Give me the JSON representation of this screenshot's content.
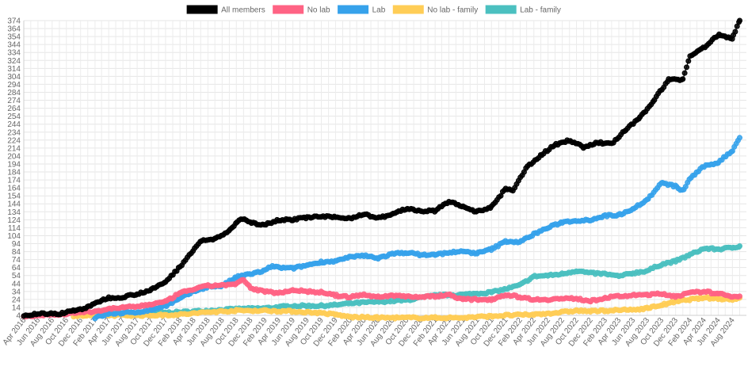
{
  "chart_data": {
    "type": "line",
    "legend_position": "top",
    "grid": true,
    "ylim": [
      4,
      374
    ],
    "y_ticks": [
      4,
      14,
      24,
      34,
      44,
      54,
      64,
      74,
      84,
      94,
      104,
      114,
      124,
      134,
      144,
      154,
      164,
      174,
      184,
      194,
      204,
      214,
      224,
      234,
      244,
      254,
      264,
      274,
      284,
      294,
      304,
      314,
      324,
      334,
      344,
      354,
      364,
      374
    ],
    "x_ticks": [
      "Apr 2016",
      "Jun 2016",
      "Aug 2016",
      "Oct 2016",
      "Dec 2016",
      "Feb 2017",
      "Apr 2017",
      "Jun 2017",
      "Aug 2017",
      "Oct 2017",
      "Dec 2017",
      "Feb 2018",
      "Apr 2018",
      "Jun 2018",
      "Aug 2018",
      "Oct 2018",
      "Dec 2018",
      "Feb 2019",
      "Apr 2019",
      "Jun 2019",
      "Aug 2019",
      "Oct 2019",
      "Dec 2019",
      "Feb 2020",
      "Apr 2020",
      "Jun 2020",
      "Aug 2020",
      "Oct 2020",
      "Dec 2020",
      "Feb 2021",
      "Apr 2021",
      "Jun 2021",
      "Aug 2021",
      "Oct 2021",
      "Dec 2021",
      "Feb 2022",
      "Apr 2022",
      "Jun 2022",
      "Aug 2022",
      "Oct 2022",
      "Dec 2022",
      "Feb 2023",
      "Apr 2023",
      "Jun 2023",
      "Aug 2023",
      "Oct 2023",
      "Dec 2023",
      "Feb 2024",
      "Apr 2024",
      "Jun 2024",
      "Aug 2024"
    ],
    "x_range": [
      "2016-04-01",
      "2024-09-30"
    ],
    "series": [
      {
        "name": "All members",
        "color": "#000000",
        "points": [
          [
            "2016-04-01",
            3
          ],
          [
            "2016-05-01",
            5
          ],
          [
            "2016-06-01",
            6
          ],
          [
            "2016-09-01",
            6
          ],
          [
            "2016-11-01",
            10
          ],
          [
            "2017-01-01",
            14
          ],
          [
            "2017-03-01",
            23
          ],
          [
            "2017-04-01",
            26
          ],
          [
            "2017-06-01",
            27
          ],
          [
            "2017-08-01",
            31
          ],
          [
            "2017-10-01",
            36
          ],
          [
            "2017-12-01",
            46
          ],
          [
            "2018-02-01",
            65
          ],
          [
            "2018-04-01",
            87
          ],
          [
            "2018-05-01",
            97
          ],
          [
            "2018-07-01",
            100
          ],
          [
            "2018-09-01",
            110
          ],
          [
            "2018-10-01",
            120
          ],
          [
            "2018-11-01",
            126
          ],
          [
            "2018-12-01",
            120
          ],
          [
            "2019-02-01",
            118
          ],
          [
            "2019-04-01",
            124
          ],
          [
            "2019-06-01",
            124
          ],
          [
            "2019-08-01",
            127
          ],
          [
            "2019-10-01",
            128
          ],
          [
            "2019-12-01",
            127
          ],
          [
            "2020-02-01",
            126
          ],
          [
            "2020-04-01",
            131
          ],
          [
            "2020-06-01",
            126
          ],
          [
            "2020-08-01",
            131
          ],
          [
            "2020-10-01",
            138
          ],
          [
            "2020-12-01",
            135
          ],
          [
            "2021-02-01",
            135
          ],
          [
            "2021-04-01",
            147
          ],
          [
            "2021-06-01",
            140
          ],
          [
            "2021-08-01",
            134
          ],
          [
            "2021-10-01",
            140
          ],
          [
            "2021-12-01",
            163
          ],
          [
            "2022-01-01",
            160
          ],
          [
            "2022-03-01",
            190
          ],
          [
            "2022-05-01",
            205
          ],
          [
            "2022-07-01",
            218
          ],
          [
            "2022-09-01",
            224
          ],
          [
            "2022-11-01",
            215
          ],
          [
            "2023-01-01",
            221
          ],
          [
            "2023-03-01",
            219
          ],
          [
            "2023-05-01",
            237
          ],
          [
            "2023-07-01",
            252
          ],
          [
            "2023-09-01",
            275
          ],
          [
            "2023-11-01",
            300
          ],
          [
            "2024-01-01",
            300
          ],
          [
            "2024-02-01",
            330
          ],
          [
            "2024-04-01",
            340
          ],
          [
            "2024-06-01",
            356
          ],
          [
            "2024-08-01",
            352
          ],
          [
            "2024-09-01",
            374
          ]
        ]
      },
      {
        "name": "No lab",
        "color": "#ff6384",
        "points": [
          [
            "2016-04-01",
            3
          ],
          [
            "2016-06-01",
            4
          ],
          [
            "2016-09-01",
            5
          ],
          [
            "2016-11-01",
            7
          ],
          [
            "2017-02-01",
            9
          ],
          [
            "2017-04-01",
            12
          ],
          [
            "2017-06-01",
            14
          ],
          [
            "2017-08-01",
            15
          ],
          [
            "2017-10-01",
            18
          ],
          [
            "2017-12-01",
            21
          ],
          [
            "2018-02-01",
            32
          ],
          [
            "2018-04-01",
            37
          ],
          [
            "2018-06-01",
            41
          ],
          [
            "2018-08-01",
            42
          ],
          [
            "2018-10-01",
            43
          ],
          [
            "2018-11-01",
            49
          ],
          [
            "2018-12-01",
            38
          ],
          [
            "2019-02-01",
            34
          ],
          [
            "2019-04-01",
            32
          ],
          [
            "2019-06-01",
            36
          ],
          [
            "2019-08-01",
            34
          ],
          [
            "2019-10-01",
            33
          ],
          [
            "2019-12-01",
            29
          ],
          [
            "2020-02-01",
            27
          ],
          [
            "2020-04-01",
            30
          ],
          [
            "2020-06-01",
            27
          ],
          [
            "2020-08-01",
            29
          ],
          [
            "2020-10-01",
            28
          ],
          [
            "2020-12-01",
            27
          ],
          [
            "2021-02-01",
            28
          ],
          [
            "2021-04-01",
            30
          ],
          [
            "2021-06-01",
            24
          ],
          [
            "2021-08-01",
            24
          ],
          [
            "2021-10-01",
            24
          ],
          [
            "2021-12-01",
            30
          ],
          [
            "2022-02-01",
            27
          ],
          [
            "2022-04-01",
            24
          ],
          [
            "2022-06-01",
            24
          ],
          [
            "2022-08-01",
            25
          ],
          [
            "2022-10-01",
            25
          ],
          [
            "2022-12-01",
            22
          ],
          [
            "2023-02-01",
            26
          ],
          [
            "2023-04-01",
            28
          ],
          [
            "2023-06-01",
            29
          ],
          [
            "2023-08-01",
            30
          ],
          [
            "2023-10-01",
            31
          ],
          [
            "2023-12-01",
            28
          ],
          [
            "2024-02-01",
            32
          ],
          [
            "2024-04-01",
            34
          ],
          [
            "2024-06-01",
            31
          ],
          [
            "2024-08-01",
            28
          ],
          [
            "2024-09-01",
            28
          ]
        ]
      },
      {
        "name": "Lab",
        "color": "#36a2eb",
        "points": [
          [
            "2017-02-01",
            1
          ],
          [
            "2017-04-01",
            6
          ],
          [
            "2017-06-01",
            7
          ],
          [
            "2017-08-01",
            8
          ],
          [
            "2017-10-01",
            11
          ],
          [
            "2017-12-01",
            16
          ],
          [
            "2018-02-01",
            25
          ],
          [
            "2018-04-01",
            34
          ],
          [
            "2018-06-01",
            40
          ],
          [
            "2018-08-01",
            41
          ],
          [
            "2018-10-01",
            52
          ],
          [
            "2018-12-01",
            56
          ],
          [
            "2019-02-01",
            60
          ],
          [
            "2019-03-01",
            66
          ],
          [
            "2019-04-01",
            64
          ],
          [
            "2019-06-01",
            63
          ],
          [
            "2019-08-01",
            67
          ],
          [
            "2019-10-01",
            71
          ],
          [
            "2019-12-01",
            72
          ],
          [
            "2020-02-01",
            77
          ],
          [
            "2020-04-01",
            79
          ],
          [
            "2020-06-01",
            76
          ],
          [
            "2020-08-01",
            81
          ],
          [
            "2020-10-01",
            83
          ],
          [
            "2020-12-01",
            80
          ],
          [
            "2021-02-01",
            80
          ],
          [
            "2021-04-01",
            83
          ],
          [
            "2021-06-01",
            84
          ],
          [
            "2021-08-01",
            82
          ],
          [
            "2021-10-01",
            87
          ],
          [
            "2021-12-01",
            97
          ],
          [
            "2022-02-01",
            96
          ],
          [
            "2022-04-01",
            106
          ],
          [
            "2022-06-01",
            114
          ],
          [
            "2022-08-01",
            121
          ],
          [
            "2022-10-01",
            123
          ],
          [
            "2022-12-01",
            124
          ],
          [
            "2023-02-01",
            129
          ],
          [
            "2023-04-01",
            130
          ],
          [
            "2023-06-01",
            138
          ],
          [
            "2023-08-01",
            149
          ],
          [
            "2023-10-01",
            170
          ],
          [
            "2023-12-01",
            166
          ],
          [
            "2024-01-01",
            160
          ],
          [
            "2024-02-01",
            176
          ],
          [
            "2024-04-01",
            191
          ],
          [
            "2024-06-01",
            196
          ],
          [
            "2024-08-01",
            211
          ],
          [
            "2024-09-01",
            227
          ]
        ]
      },
      {
        "name": "No lab - family",
        "color": "#ffcd56",
        "points": [
          [
            "2016-11-01",
            3
          ],
          [
            "2017-02-01",
            4
          ],
          [
            "2017-06-01",
            4
          ],
          [
            "2017-10-01",
            4
          ],
          [
            "2018-02-01",
            5
          ],
          [
            "2018-06-01",
            8
          ],
          [
            "2018-10-01",
            10
          ],
          [
            "2019-02-01",
            10
          ],
          [
            "2019-06-01",
            9
          ],
          [
            "2019-08-01",
            8
          ],
          [
            "2019-10-01",
            7
          ],
          [
            "2019-12-01",
            5
          ],
          [
            "2020-02-01",
            2
          ],
          [
            "2020-06-01",
            1
          ],
          [
            "2020-10-01",
            1
          ],
          [
            "2021-02-01",
            1
          ],
          [
            "2021-06-01",
            1
          ],
          [
            "2021-10-01",
            3
          ],
          [
            "2021-12-01",
            4
          ],
          [
            "2022-04-01",
            5
          ],
          [
            "2022-08-01",
            8
          ],
          [
            "2022-10-01",
            10
          ],
          [
            "2022-12-01",
            9
          ],
          [
            "2023-02-01",
            10
          ],
          [
            "2023-06-01",
            11
          ],
          [
            "2023-08-01",
            13
          ],
          [
            "2023-10-01",
            17
          ],
          [
            "2023-12-01",
            21
          ],
          [
            "2024-02-01",
            24
          ],
          [
            "2024-04-01",
            26
          ],
          [
            "2024-06-01",
            25
          ],
          [
            "2024-08-01",
            24
          ],
          [
            "2024-09-01",
            26
          ]
        ]
      },
      {
        "name": "Lab - family",
        "color": "#4bc0c0",
        "points": [
          [
            "2017-02-01",
            4
          ],
          [
            "2017-06-01",
            6
          ],
          [
            "2017-10-01",
            7
          ],
          [
            "2018-02-01",
            8
          ],
          [
            "2018-06-01",
            10
          ],
          [
            "2018-10-01",
            12
          ],
          [
            "2019-02-01",
            13
          ],
          [
            "2019-06-01",
            16
          ],
          [
            "2019-08-01",
            16
          ],
          [
            "2019-10-01",
            16
          ],
          [
            "2019-12-01",
            17
          ],
          [
            "2020-02-01",
            19
          ],
          [
            "2020-06-01",
            21
          ],
          [
            "2020-10-01",
            23
          ],
          [
            "2021-02-01",
            29
          ],
          [
            "2021-06-01",
            30
          ],
          [
            "2021-10-01",
            33
          ],
          [
            "2021-12-01",
            37
          ],
          [
            "2022-02-01",
            42
          ],
          [
            "2022-04-01",
            53
          ],
          [
            "2022-06-01",
            54
          ],
          [
            "2022-08-01",
            56
          ],
          [
            "2022-10-01",
            60
          ],
          [
            "2022-12-01",
            57
          ],
          [
            "2023-02-01",
            56
          ],
          [
            "2023-04-01",
            53
          ],
          [
            "2023-06-01",
            57
          ],
          [
            "2023-08-01",
            60
          ],
          [
            "2023-10-01",
            68
          ],
          [
            "2023-12-01",
            72
          ],
          [
            "2024-02-01",
            80
          ],
          [
            "2024-04-01",
            88
          ],
          [
            "2024-06-01",
            87
          ],
          [
            "2024-08-01",
            89
          ],
          [
            "2024-09-01",
            91
          ]
        ]
      }
    ]
  }
}
